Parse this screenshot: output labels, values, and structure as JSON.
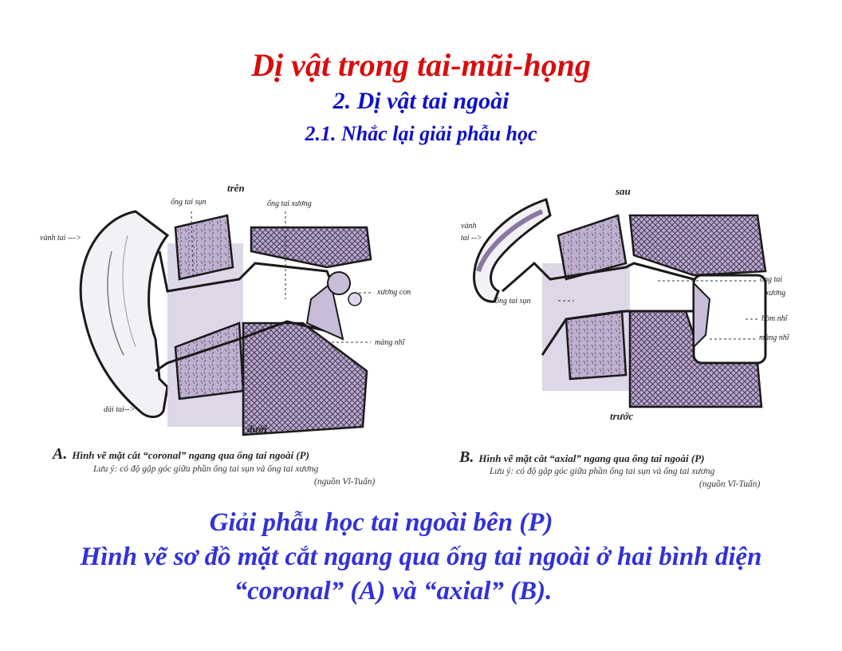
{
  "header": {
    "title": "Dị vật trong tai-mũi-họng",
    "subtitle": "2. Dị vật tai ngoài",
    "section": "2.1. Nhắc lại giải phẫu học"
  },
  "figure_a": {
    "labels": {
      "top": "trên",
      "cartilage_canal": "ống tai sụn",
      "bony_canal": "ống tai xương",
      "helix": "vành tai --->",
      "ossicles": "xương con",
      "eardrum": "màng nhĩ",
      "lobule": "dái tai-->",
      "bottom": "dưới"
    },
    "caption_letter": "A.",
    "caption": "Hình vẽ mặt cắt “coronal” ngang qua ống tai ngoài (P)",
    "note": "Lưu ý: có độ gập góc giữa phần ống tai sụn và ống tai xương",
    "source": "(nguồn Vĩ-Tuấn)"
  },
  "figure_b": {
    "labels": {
      "top": "sau",
      "helix_1": "vành",
      "helix_2": "tai -->",
      "cartilage_canal": "ống tai sụn",
      "bony_canal_1": "ống tai",
      "bony_canal_2": "xương",
      "middle_ear": "hòm nhĩ",
      "eardrum": "màng nhĩ",
      "bottom": "trước"
    },
    "caption_letter": "B.",
    "caption": "Hình vẽ mặt cắt “axial” ngang qua ống tai ngoài (P)",
    "note": "Lưu ý: có độ gập góc giữa phần ống tai sụn và ống tai xương",
    "source": "(nguồn Vĩ-Tuấn)"
  },
  "summary": {
    "line1": "Giải phẫu học tai ngoài bên (P)",
    "line2": "Hình vẽ sơ đồ mặt cắt ngang qua ống tai ngoài ở hai bình diện",
    "line3": "“coronal” (A) và “axial” (B)."
  },
  "colors": {
    "title": "#d80d0d",
    "subtitle": "#1010c8",
    "summary": "#3232d8",
    "tissue": "#b9a8cc"
  }
}
